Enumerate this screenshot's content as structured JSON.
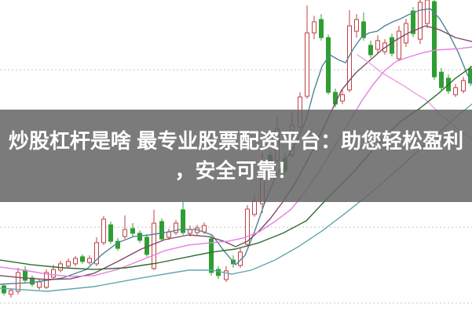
{
  "page": {
    "background_color": "#ffffff",
    "description": "Candlestick stock chart screenshot with promotional headline banner overlay"
  },
  "overlay": {
    "band_color": "rgba(100,100,100,0.85)",
    "text_color": "#ffffff",
    "line1": "炒股杠杆是啥 最专业股票配资平台：助您轻松盈利",
    "line2": "，安全可靠！"
  },
  "chart_data": {
    "type": "candlestick",
    "title": "",
    "xlabel": "",
    "ylabel": "",
    "note": "No axis tick labels are visible in the screenshot; prices are relative units estimated from pixel positions (price = (420 - y_px) / 30). Red hollow candles = up, green solid candles = down (Chinese convention).",
    "grid": "horizontal dotted gridlines",
    "gridline_prices": [
      11.03,
      7.73,
      4.33,
      1.1
    ],
    "ylim": [
      0.6,
      14.0
    ],
    "colors": {
      "up_candle": "#bf4045",
      "down_candle": "#2f9e32",
      "gridline": "#c4c4c4",
      "background": "#ffffff"
    },
    "candle_columns": [
      "x_px",
      "open",
      "high",
      "low",
      "close",
      "direction"
    ],
    "candles": [
      [
        5,
        1.83,
        1.93,
        1.43,
        1.53,
        "d"
      ],
      [
        14,
        1.47,
        1.73,
        1.33,
        1.63,
        "u"
      ],
      [
        23,
        1.6,
        2.6,
        1.47,
        2.4,
        "u"
      ],
      [
        32,
        2.5,
        2.67,
        1.93,
        2.07,
        "d"
      ],
      [
        41,
        2.17,
        2.27,
        1.8,
        1.9,
        "d"
      ],
      [
        50,
        1.77,
        2.13,
        1.67,
        2.0,
        "u"
      ],
      [
        59,
        1.77,
        2.53,
        1.7,
        2.4,
        "u"
      ],
      [
        68,
        2.2,
        2.73,
        2.1,
        2.53,
        "u"
      ],
      [
        77,
        2.5,
        2.9,
        2.4,
        2.77,
        "u"
      ],
      [
        87,
        2.67,
        3.0,
        2.57,
        2.87,
        "u"
      ],
      [
        96,
        2.77,
        3.1,
        2.67,
        3.0,
        "u"
      ],
      [
        105,
        3.07,
        3.17,
        2.77,
        2.87,
        "d"
      ],
      [
        114,
        2.83,
        3.13,
        2.73,
        3.0,
        "u"
      ],
      [
        123,
        2.77,
        3.9,
        2.67,
        3.67,
        "u"
      ],
      [
        132,
        3.67,
        4.8,
        3.57,
        4.67,
        "u"
      ],
      [
        141,
        4.43,
        4.57,
        3.63,
        3.73,
        "d"
      ],
      [
        150,
        3.73,
        3.87,
        3.33,
        3.43,
        "d"
      ],
      [
        159,
        3.93,
        4.83,
        3.83,
        4.23,
        "u"
      ],
      [
        169,
        4.27,
        4.5,
        3.93,
        4.07,
        "d"
      ],
      [
        178,
        4.07,
        4.2,
        3.67,
        3.77,
        "d"
      ],
      [
        187,
        3.9,
        4.03,
        3.07,
        3.17,
        "d"
      ],
      [
        196,
        2.57,
        5.07,
        2.5,
        4.5,
        "u"
      ],
      [
        206,
        4.57,
        4.7,
        3.73,
        3.83,
        "d"
      ],
      [
        215,
        3.9,
        4.27,
        3.8,
        4.13,
        "u"
      ],
      [
        224,
        4.1,
        4.63,
        4.0,
        4.5,
        "u"
      ],
      [
        233,
        5.07,
        5.43,
        4.0,
        4.1,
        "d"
      ],
      [
        242,
        4.07,
        4.4,
        3.93,
        4.23,
        "u"
      ],
      [
        251,
        4.1,
        4.43,
        4.0,
        4.3,
        "u"
      ],
      [
        260,
        4.13,
        4.53,
        4.03,
        4.4,
        "u"
      ],
      [
        269,
        3.83,
        4.0,
        2.27,
        2.4,
        "d"
      ],
      [
        278,
        2.53,
        2.67,
        2.13,
        2.27,
        "d"
      ],
      [
        288,
        2.1,
        2.67,
        2.0,
        2.47,
        "u"
      ],
      [
        297,
        2.93,
        3.13,
        2.6,
        2.77,
        "d"
      ],
      [
        306,
        2.7,
        3.43,
        2.6,
        3.27,
        "u"
      ],
      [
        315,
        3.6,
        5.27,
        3.5,
        5.1,
        "u"
      ],
      [
        324,
        4.87,
        5.67,
        4.77,
        5.43,
        "u"
      ],
      [
        334,
        5.33,
        7.5,
        4.93,
        6.4,
        "u"
      ],
      [
        344,
        7.4,
        7.57,
        6.33,
        6.8,
        "d"
      ],
      [
        353,
        7.17,
        9.0,
        7.07,
        8.5,
        "u"
      ],
      [
        363,
        7.27,
        7.47,
        6.6,
        6.73,
        "d"
      ],
      [
        372,
        7.4,
        9.23,
        7.3,
        8.67,
        "u"
      ],
      [
        382,
        8.6,
        10.07,
        8.5,
        9.87,
        "u"
      ],
      [
        391,
        9.9,
        13.77,
        9.8,
        12.6,
        "u"
      ],
      [
        400,
        12.6,
        13.33,
        12.33,
        13.07,
        "u"
      ],
      [
        409,
        13.17,
        13.4,
        12.27,
        12.4,
        "d"
      ],
      [
        418,
        12.4,
        12.53,
        9.97,
        10.07,
        "d"
      ],
      [
        427,
        10.07,
        10.23,
        9.43,
        9.57,
        "d"
      ],
      [
        436,
        9.7,
        10.17,
        9.57,
        9.97,
        "u"
      ],
      [
        445,
        10.17,
        13.57,
        10.07,
        12.9,
        "u"
      ],
      [
        454,
        12.67,
        13.4,
        12.4,
        13.17,
        "u"
      ],
      [
        463,
        13.07,
        13.47,
        12.27,
        12.4,
        "d"
      ],
      [
        472,
        12.07,
        12.27,
        11.53,
        11.67,
        "d"
      ],
      [
        481,
        11.9,
        12.5,
        11.73,
        12.27,
        "u"
      ],
      [
        490,
        11.8,
        12.33,
        11.67,
        12.17,
        "u"
      ],
      [
        499,
        12.4,
        12.57,
        11.6,
        11.73,
        "d"
      ],
      [
        508,
        11.5,
        12.9,
        11.4,
        12.67,
        "u"
      ],
      [
        517,
        12.17,
        13.2,
        12.0,
        13.0,
        "u"
      ],
      [
        526,
        13.53,
        13.7,
        12.43,
        12.57,
        "d"
      ],
      [
        535,
        12.33,
        14.0,
        12.13,
        13.9,
        "u"
      ],
      [
        544,
        13.0,
        14.0,
        12.8,
        14.0,
        "u"
      ],
      [
        553,
        13.93,
        14.0,
        10.6,
        10.73,
        "d"
      ],
      [
        562,
        10.93,
        11.1,
        10.13,
        10.27,
        "d"
      ],
      [
        571,
        10.67,
        10.83,
        10.0,
        10.13,
        "d"
      ],
      [
        580,
        9.97,
        10.43,
        9.87,
        10.27,
        "u"
      ],
      [
        590,
        10.13,
        10.73,
        10.03,
        10.57,
        "u"
      ],
      [
        599,
        11.07,
        11.2,
        10.33,
        10.47,
        "d"
      ]
    ],
    "moving_averages": [
      {
        "name": "ma-fast-teal",
        "color": "#4e8498",
        "points": [
          [
            0,
            1.9
          ],
          [
            40,
            1.97
          ],
          [
            80,
            2.17
          ],
          [
            110,
            2.53
          ],
          [
            130,
            3.17
          ],
          [
            150,
            3.67
          ],
          [
            170,
            3.93
          ],
          [
            190,
            4.0
          ],
          [
            210,
            4.1
          ],
          [
            230,
            4.23
          ],
          [
            250,
            4.23
          ],
          [
            270,
            4.0
          ],
          [
            285,
            3.33
          ],
          [
            300,
            2.73
          ],
          [
            312,
            3.13
          ],
          [
            324,
            4.13
          ],
          [
            336,
            5.27
          ],
          [
            350,
            6.4
          ],
          [
            364,
            7.2
          ],
          [
            378,
            8.0
          ],
          [
            390,
            8.93
          ],
          [
            400,
            10.17
          ],
          [
            410,
            11.17
          ],
          [
            420,
            11.67
          ],
          [
            430,
            11.47
          ],
          [
            440,
            11.33
          ],
          [
            450,
            11.93
          ],
          [
            460,
            12.4
          ],
          [
            470,
            12.6
          ],
          [
            480,
            12.67
          ],
          [
            490,
            12.9
          ],
          [
            500,
            13.07
          ],
          [
            510,
            13.2
          ],
          [
            520,
            13.37
          ],
          [
            535,
            13.57
          ],
          [
            548,
            13.63
          ],
          [
            560,
            13.2
          ],
          [
            572,
            12.53
          ],
          [
            584,
            11.73
          ],
          [
            595,
            10.83
          ],
          [
            601,
            10.43
          ]
        ]
      },
      {
        "name": "ma-dark-purple",
        "color": "#7d4a66",
        "points": [
          [
            0,
            2.27
          ],
          [
            30,
            2.17
          ],
          [
            60,
            2.1
          ],
          [
            90,
            2.13
          ],
          [
            120,
            2.37
          ],
          [
            150,
            2.87
          ],
          [
            180,
            3.4
          ],
          [
            210,
            3.8
          ],
          [
            240,
            4.0
          ],
          [
            265,
            3.93
          ],
          [
            285,
            3.73
          ],
          [
            300,
            3.5
          ],
          [
            315,
            3.73
          ],
          [
            330,
            4.17
          ],
          [
            345,
            4.73
          ],
          [
            360,
            5.4
          ],
          [
            375,
            6.17
          ],
          [
            390,
            7.07
          ],
          [
            405,
            8.07
          ],
          [
            420,
            9.13
          ],
          [
            435,
            10.17
          ],
          [
            453,
            10.9
          ],
          [
            470,
            11.4
          ],
          [
            487,
            11.9
          ],
          [
            503,
            12.27
          ],
          [
            520,
            12.6
          ],
          [
            542,
            12.9
          ],
          [
            560,
            12.73
          ],
          [
            580,
            12.4
          ],
          [
            601,
            12.23
          ]
        ]
      },
      {
        "name": "ma-violet",
        "color": "#e57fdf",
        "points": [
          [
            0,
            2.63
          ],
          [
            30,
            2.5
          ],
          [
            60,
            2.33
          ],
          [
            90,
            2.23
          ],
          [
            120,
            2.27
          ],
          [
            150,
            2.53
          ],
          [
            180,
            2.93
          ],
          [
            210,
            3.33
          ],
          [
            240,
            3.57
          ],
          [
            270,
            3.67
          ],
          [
            290,
            3.73
          ],
          [
            310,
            3.87
          ],
          [
            330,
            4.13
          ],
          [
            350,
            4.57
          ],
          [
            370,
            5.07
          ],
          [
            385,
            5.67
          ],
          [
            400,
            6.4
          ],
          [
            415,
            7.17
          ],
          [
            430,
            8.0
          ],
          [
            445,
            8.83
          ],
          [
            460,
            9.67
          ],
          [
            475,
            10.4
          ],
          [
            490,
            11.0
          ],
          [
            505,
            11.4
          ],
          [
            523,
            11.6
          ],
          [
            540,
            11.77
          ],
          [
            555,
            11.87
          ],
          [
            570,
            11.9
          ],
          [
            585,
            11.93
          ],
          [
            601,
            12.0
          ]
        ]
      },
      {
        "name": "ma-light-pink-descending",
        "color": "#eda0e0",
        "points": [
          [
            455,
            11.67
          ],
          [
            470,
            11.33
          ],
          [
            485,
            10.93
          ],
          [
            500,
            10.63
          ],
          [
            515,
            10.33
          ],
          [
            530,
            10.0
          ],
          [
            543,
            9.73
          ],
          [
            558,
            9.23
          ],
          [
            575,
            8.73
          ],
          [
            590,
            8.33
          ],
          [
            601,
            8.07
          ]
        ]
      },
      {
        "name": "ma-dark-green",
        "color": "#2e6b2e",
        "points": [
          [
            0,
            2.93
          ],
          [
            40,
            2.73
          ],
          [
            80,
            2.6
          ],
          [
            120,
            2.53
          ],
          [
            160,
            2.6
          ],
          [
            200,
            2.8
          ],
          [
            240,
            3.07
          ],
          [
            270,
            3.27
          ],
          [
            300,
            3.4
          ],
          [
            330,
            3.67
          ],
          [
            360,
            4.07
          ],
          [
            390,
            4.6
          ],
          [
            420,
            5.67
          ],
          [
            450,
            6.67
          ],
          [
            480,
            7.83
          ],
          [
            510,
            8.83
          ],
          [
            535,
            9.4
          ],
          [
            560,
            10.07
          ],
          [
            580,
            10.67
          ],
          [
            601,
            11.17
          ]
        ]
      },
      {
        "name": "ma-light-teal",
        "color": "#5fa8ad",
        "points": [
          [
            0,
            1.73
          ],
          [
            60,
            1.6
          ],
          [
            120,
            1.8
          ],
          [
            180,
            2.17
          ],
          [
            240,
            2.5
          ],
          [
            270,
            2.5
          ],
          [
            295,
            2.33
          ],
          [
            320,
            2.5
          ],
          [
            350,
            2.93
          ],
          [
            380,
            3.5
          ],
          [
            410,
            4.17
          ],
          [
            440,
            4.93
          ],
          [
            470,
            5.73
          ],
          [
            500,
            6.6
          ],
          [
            530,
            7.5
          ],
          [
            560,
            8.4
          ],
          [
            580,
            9.0
          ],
          [
            601,
            9.57
          ]
        ]
      }
    ]
  }
}
